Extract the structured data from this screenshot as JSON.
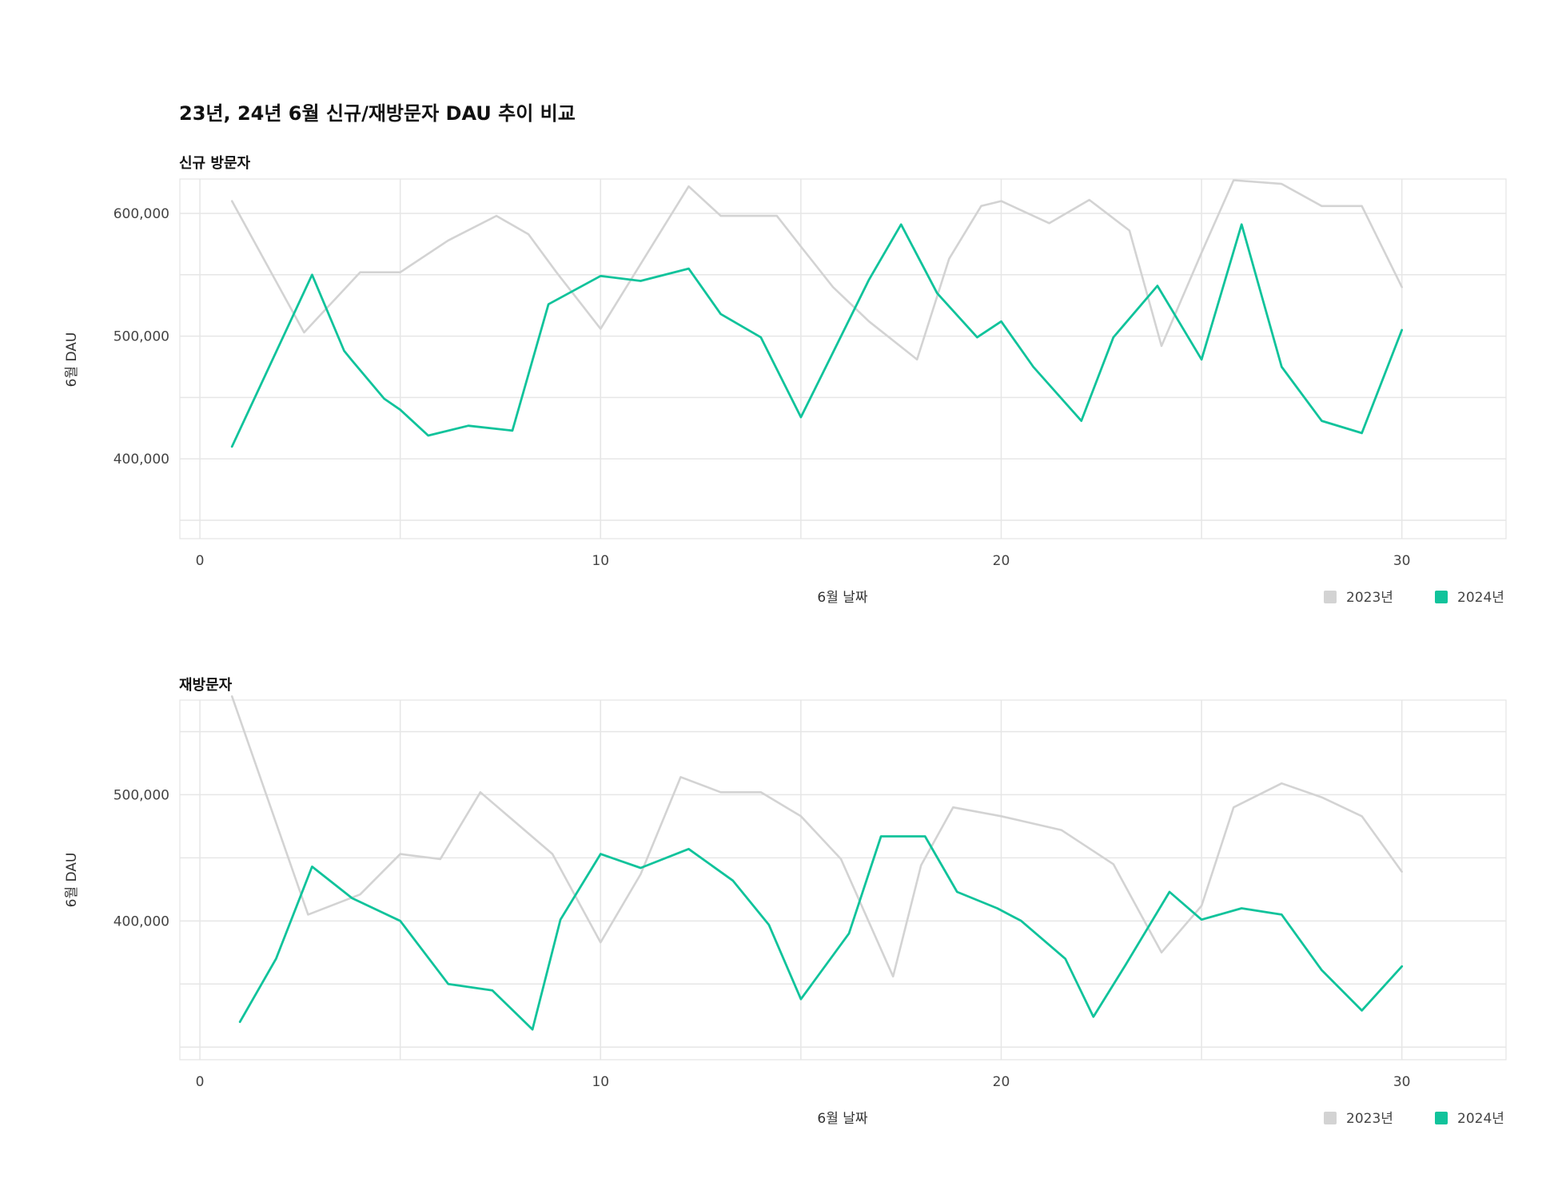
{
  "title": "23년, 24년 6월 신규/재방문자 DAU 추이 비교",
  "colors": {
    "y2023": "#d3d3d3",
    "y2024": "#10c39b",
    "grid": "#e6e6e6"
  },
  "legend": [
    "2023년",
    "2024년"
  ],
  "chart_data": [
    {
      "type": "line",
      "title": "신규 방문자",
      "xlabel": "6월 날짜",
      "ylabel": "6월 DAU",
      "xlim": [
        -0.5,
        32.6
      ],
      "ylim": [
        335000,
        628000
      ],
      "x_ticks": [
        0,
        10,
        20,
        30
      ],
      "y_ticks": [
        400000,
        500000,
        600000
      ],
      "y_tick_labels": [
        "400,000",
        "500,000",
        "600,000"
      ],
      "grid": true,
      "legend_position": "bottom-right",
      "series": [
        {
          "name": "2023년",
          "x": [
            0.8,
            2.6,
            4,
            5,
            6.2,
            7.4,
            8.2,
            8.9,
            10,
            12.2,
            13,
            14.4,
            15,
            15.8,
            16.7,
            17.9,
            18.7,
            19.5,
            20,
            21.2,
            22.2,
            23.2,
            24,
            25,
            25.8,
            27,
            28,
            29,
            30
          ],
          "values": [
            610000,
            503000,
            552000,
            552000,
            578000,
            598000,
            583000,
            552000,
            506000,
            622000,
            598000,
            598000,
            573000,
            540000,
            512000,
            481000,
            563000,
            606000,
            610000,
            592000,
            611000,
            586000,
            492000,
            568000,
            627000,
            624000,
            606000,
            606000,
            540000
          ]
        },
        {
          "name": "2024년",
          "x": [
            0.8,
            2.8,
            3.6,
            3.8,
            4.6,
            5,
            5.7,
            6.7,
            7.8,
            8.7,
            10,
            11,
            12.2,
            13,
            14,
            15,
            15.7,
            16.7,
            17.5,
            18.4,
            19.4,
            20,
            20.8,
            22,
            22.8,
            23.9,
            25,
            26,
            27,
            28,
            29,
            30
          ],
          "values": [
            410000,
            550000,
            488000,
            480000,
            449000,
            440000,
            419000,
            427000,
            423000,
            526000,
            549000,
            545000,
            555000,
            518000,
            499000,
            434000,
            480000,
            546000,
            591000,
            535000,
            499000,
            512000,
            475000,
            431000,
            499000,
            541000,
            481000,
            591000,
            475000,
            431000,
            421000,
            505000
          ]
        }
      ]
    },
    {
      "type": "line",
      "title": "재방문자",
      "xlabel": "6월 날짜",
      "ylabel": "6월 DAU",
      "xlim": [
        -0.5,
        32.6
      ],
      "ylim": [
        290000,
        575000
      ],
      "x_ticks": [
        0,
        10,
        20,
        30
      ],
      "y_ticks": [
        400000,
        500000
      ],
      "y_tick_labels": [
        "400,000",
        "500,000"
      ],
      "grid": true,
      "legend_position": "bottom-right",
      "series": [
        {
          "name": "2023년",
          "x": [
            0.8,
            2.7,
            4,
            5,
            6,
            7,
            8.8,
            10,
            11,
            12,
            13,
            14,
            15,
            16,
            17.3,
            18,
            18.8,
            20,
            21.5,
            22.8,
            24,
            25,
            25.8,
            27,
            28,
            29,
            30
          ],
          "values": [
            578000,
            405000,
            421000,
            453000,
            449000,
            502000,
            453000,
            383000,
            437000,
            514000,
            502000,
            502000,
            483000,
            449000,
            356000,
            444000,
            490000,
            483000,
            472000,
            445000,
            375000,
            412000,
            490000,
            509000,
            498000,
            483000,
            439000
          ]
        },
        {
          "name": "2024년",
          "x": [
            1,
            1.9,
            2.8,
            3.8,
            5,
            6.2,
            7.3,
            8.3,
            9,
            10,
            11,
            12.2,
            13.3,
            14.2,
            15,
            16.2,
            17,
            18.1,
            18.9,
            19.9,
            20.5,
            21.6,
            22.3,
            23.1,
            24.2,
            25,
            26,
            27,
            28,
            29,
            30
          ],
          "values": [
            320000,
            370000,
            443000,
            418000,
            400000,
            350000,
            345000,
            314000,
            401000,
            453000,
            442000,
            457000,
            432000,
            397000,
            338000,
            390000,
            467000,
            467000,
            423000,
            410000,
            400000,
            370000,
            324000,
            365000,
            423000,
            401000,
            410000,
            405000,
            361000,
            329000,
            364000
          ]
        }
      ]
    }
  ]
}
